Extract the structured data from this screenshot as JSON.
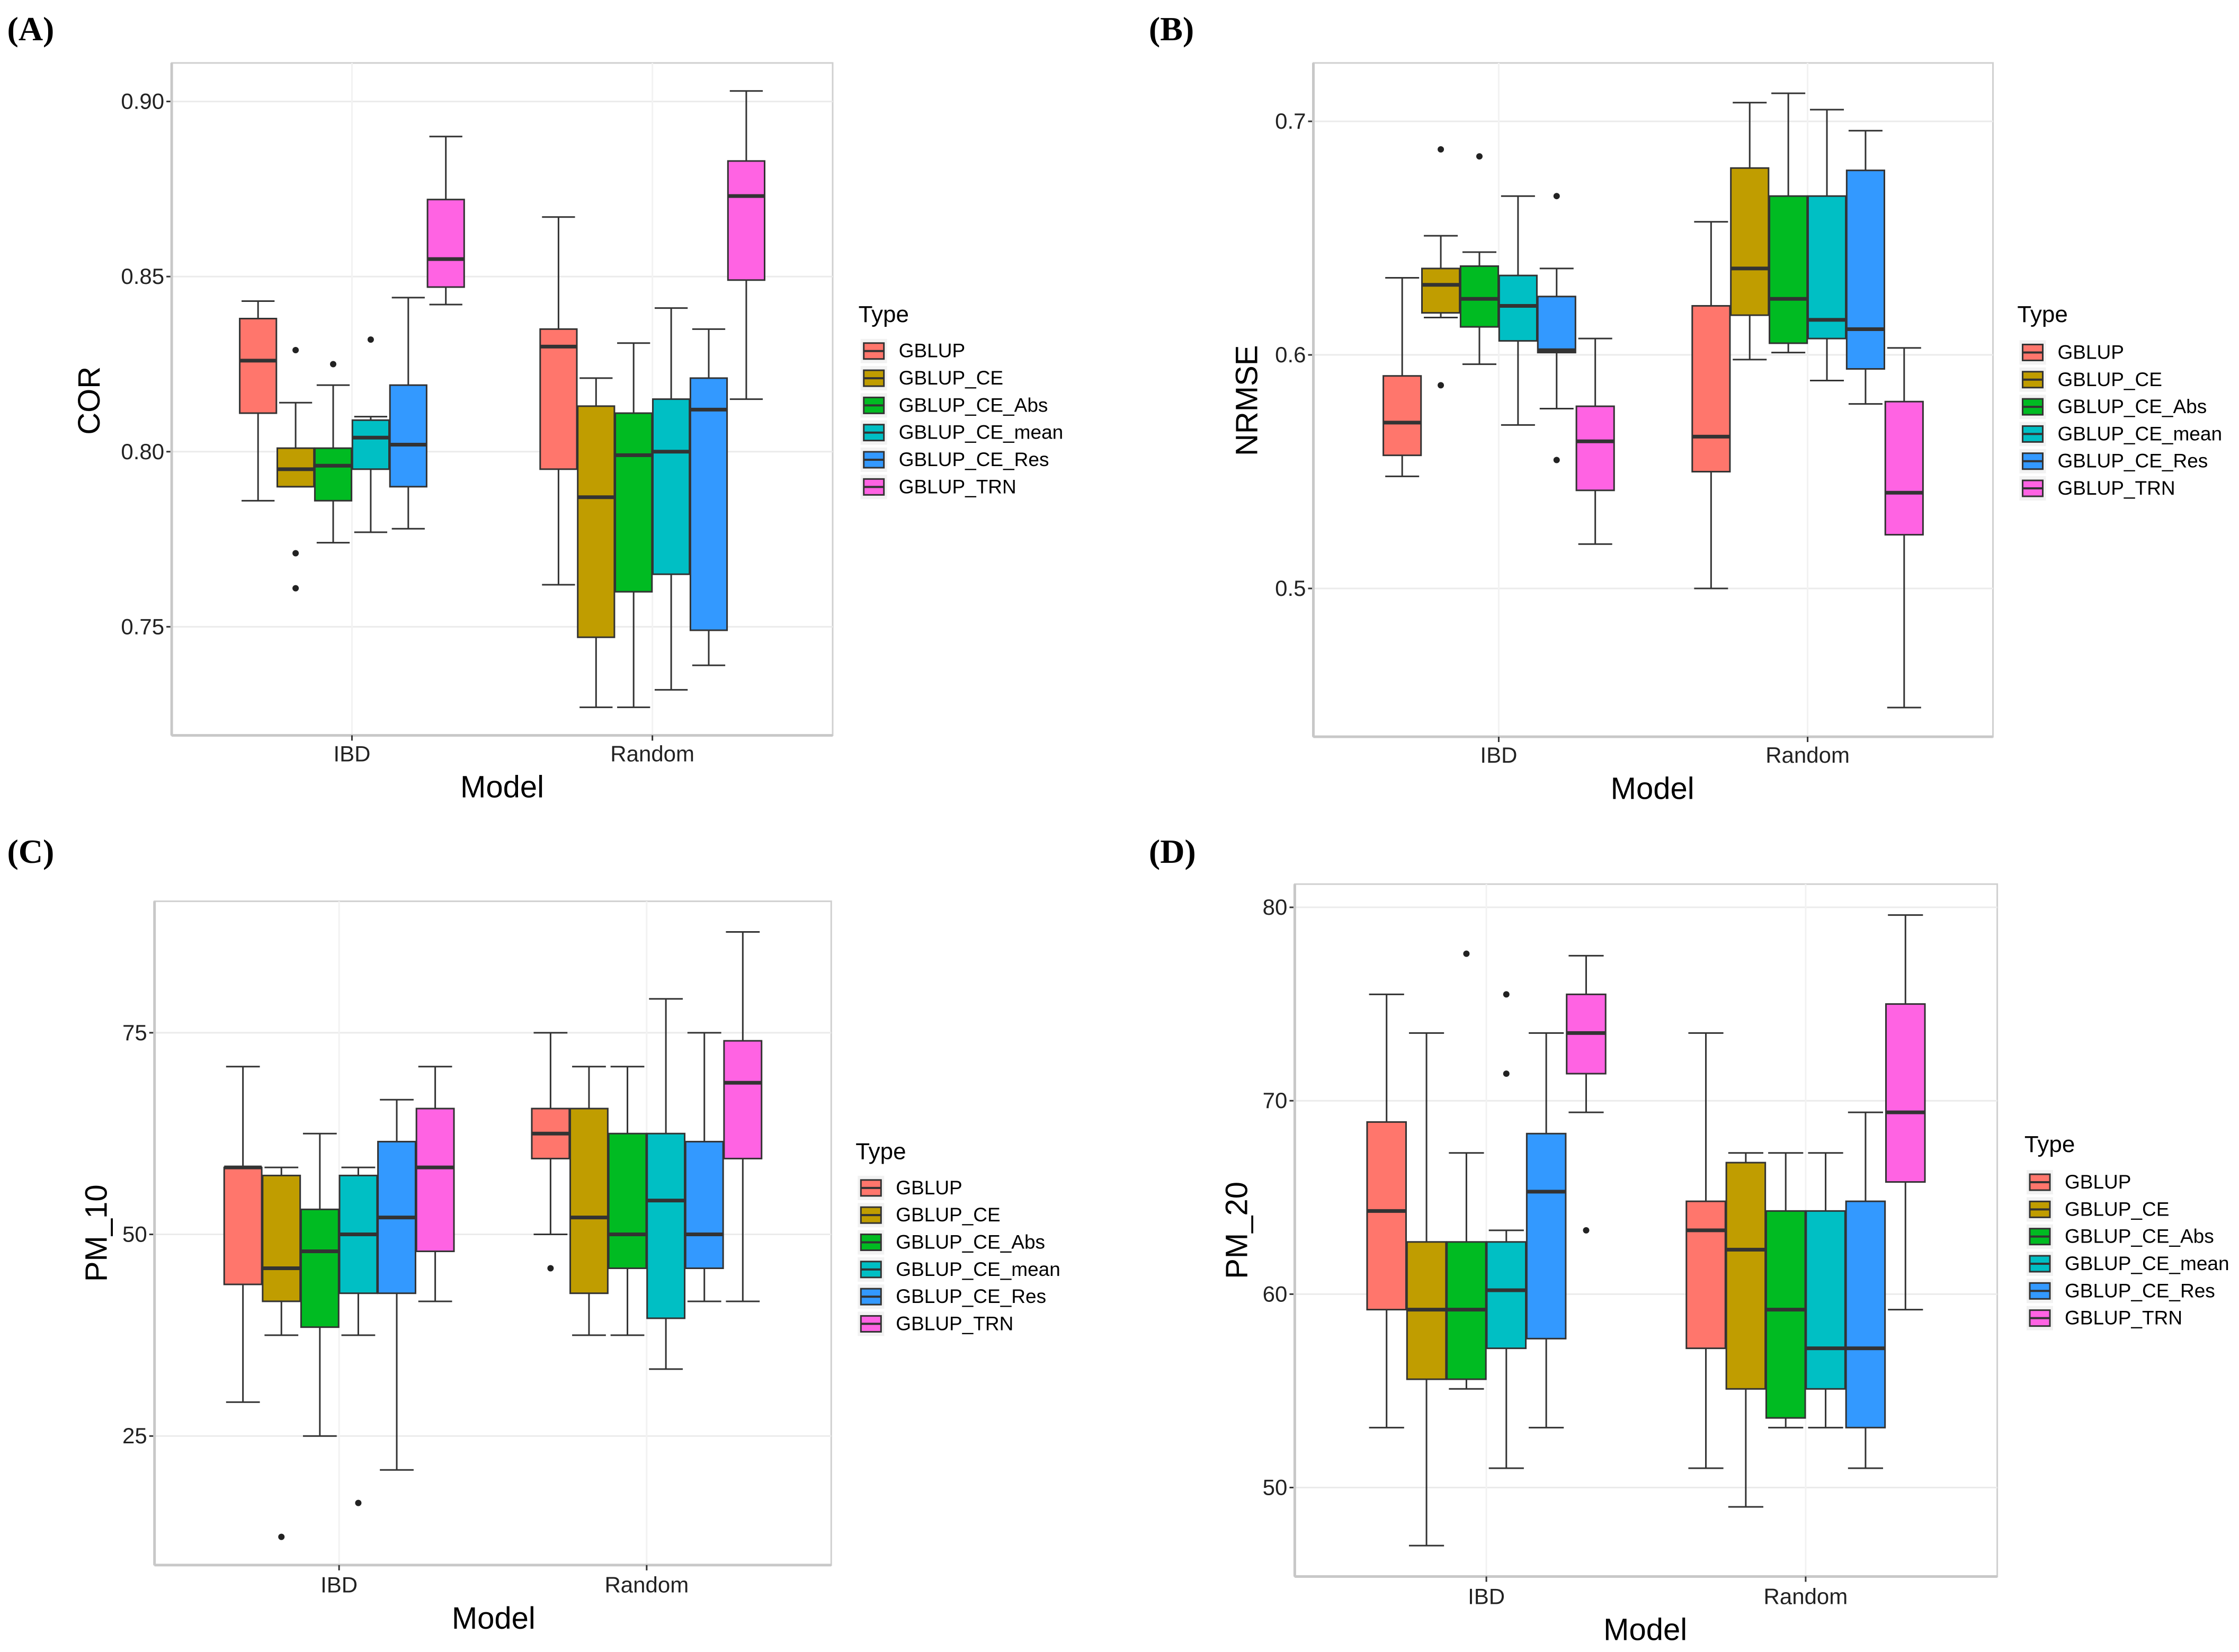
{
  "types": [
    "GBLUP",
    "GBLUP_CE",
    "GBLUP_CE_Abs",
    "GBLUP_CE_mean",
    "GBLUP_CE_Res",
    "GBLUP_TRN"
  ],
  "colors": [
    "#FF766C",
    "#C09D00",
    "#00BB22",
    "#00BFC4",
    "#3399FF",
    "#FF63E3"
  ],
  "chart_data": [
    {
      "panel_label": "(A)",
      "type": "boxplot",
      "xlabel": "Model",
      "ylabel": "COR",
      "legend_title": "Type",
      "legend_position": "right",
      "categories": [
        "IBD",
        "Random"
      ],
      "ylim": [
        0.719,
        0.911
      ],
      "yticks": [
        0.75,
        0.8,
        0.85,
        0.9
      ],
      "ytick_labels": [
        "0.75",
        "0.80",
        "0.85",
        "0.90"
      ],
      "series": [
        {
          "name": "GBLUP",
          "IBD": {
            "stats": [
              0.786,
              0.811,
              0.826,
              0.838,
              0.843
            ],
            "outliers": []
          },
          "Random": {
            "stats": [
              0.762,
              0.795,
              0.83,
              0.835,
              0.867
            ],
            "outliers": []
          }
        },
        {
          "name": "GBLUP_CE",
          "IBD": {
            "stats": [
              0.79,
              0.79,
              0.795,
              0.801,
              0.814
            ],
            "outliers": [
              0.829,
              0.771,
              0.761
            ]
          },
          "Random": {
            "stats": [
              0.727,
              0.747,
              0.787,
              0.813,
              0.821
            ],
            "outliers": []
          }
        },
        {
          "name": "GBLUP_CE_Abs",
          "IBD": {
            "stats": [
              0.774,
              0.786,
              0.796,
              0.801,
              0.819
            ],
            "outliers": [
              0.825
            ]
          },
          "Random": {
            "stats": [
              0.727,
              0.76,
              0.799,
              0.811,
              0.831
            ],
            "outliers": []
          }
        },
        {
          "name": "GBLUP_CE_mean",
          "IBD": {
            "stats": [
              0.777,
              0.795,
              0.804,
              0.809,
              0.81
            ],
            "outliers": [
              0.832
            ]
          },
          "Random": {
            "stats": [
              0.732,
              0.765,
              0.8,
              0.815,
              0.841
            ],
            "outliers": []
          }
        },
        {
          "name": "GBLUP_CE_Res",
          "IBD": {
            "stats": [
              0.778,
              0.79,
              0.802,
              0.819,
              0.844
            ],
            "outliers": []
          },
          "Random": {
            "stats": [
              0.739,
              0.749,
              0.812,
              0.821,
              0.835
            ],
            "outliers": []
          }
        },
        {
          "name": "GBLUP_TRN",
          "IBD": {
            "stats": [
              0.842,
              0.847,
              0.855,
              0.872,
              0.89
            ],
            "outliers": []
          },
          "Random": {
            "stats": [
              0.815,
              0.849,
              0.873,
              0.883,
              0.903
            ],
            "outliers": []
          }
        }
      ]
    },
    {
      "panel_label": "(B)",
      "type": "boxplot",
      "xlabel": "Model",
      "ylabel": "NRMSE",
      "legend_title": "Type",
      "legend_position": "right",
      "categories": [
        "IBD",
        "Random"
      ],
      "ylim": [
        0.4365,
        0.725
      ],
      "yticks": [
        0.5,
        0.6,
        0.7
      ],
      "ytick_labels": [
        "0.5",
        "0.6",
        "0.7"
      ],
      "series": [
        {
          "name": "GBLUP",
          "IBD": {
            "stats": [
              0.548,
              0.557,
              0.571,
              0.591,
              0.633
            ],
            "outliers": []
          },
          "Random": {
            "stats": [
              0.5,
              0.55,
              0.565,
              0.621,
              0.657
            ],
            "outliers": []
          }
        },
        {
          "name": "GBLUP_CE",
          "IBD": {
            "stats": [
              0.616,
              0.618,
              0.63,
              0.637,
              0.651
            ],
            "outliers": [
              0.688,
              0.587
            ]
          },
          "Random": {
            "stats": [
              0.598,
              0.617,
              0.637,
              0.68,
              0.708
            ],
            "outliers": []
          }
        },
        {
          "name": "GBLUP_CE_Abs",
          "IBD": {
            "stats": [
              0.596,
              0.612,
              0.624,
              0.638,
              0.644
            ],
            "outliers": [
              0.685
            ]
          },
          "Random": {
            "stats": [
              0.601,
              0.605,
              0.624,
              0.668,
              0.712
            ],
            "outliers": []
          }
        },
        {
          "name": "GBLUP_CE_mean",
          "IBD": {
            "stats": [
              0.57,
              0.606,
              0.621,
              0.634,
              0.668
            ],
            "outliers": []
          },
          "Random": {
            "stats": [
              0.589,
              0.607,
              0.615,
              0.668,
              0.705
            ],
            "outliers": []
          }
        },
        {
          "name": "GBLUP_CE_Res",
          "IBD": {
            "stats": [
              0.577,
              0.601,
              0.602,
              0.625,
              0.637
            ],
            "outliers": [
              0.668,
              0.555
            ]
          },
          "Random": {
            "stats": [
              0.579,
              0.594,
              0.611,
              0.679,
              0.696
            ],
            "outliers": []
          }
        },
        {
          "name": "GBLUP_TRN",
          "IBD": {
            "stats": [
              0.519,
              0.542,
              0.563,
              0.578,
              0.607
            ],
            "outliers": []
          },
          "Random": {
            "stats": [
              0.449,
              0.523,
              0.541,
              0.58,
              0.603
            ],
            "outliers": []
          }
        }
      ]
    },
    {
      "panel_label": "(C)",
      "type": "boxplot",
      "xlabel": "Model",
      "ylabel": "PM_10",
      "legend_title": "Type",
      "legend_position": "right",
      "categories": [
        "IBD",
        "Random"
      ],
      "ylim": [
        9.0,
        91.3
      ],
      "yticks": [
        25,
        50,
        75
      ],
      "ytick_labels": [
        "25",
        "50",
        "75"
      ],
      "series": [
        {
          "name": "GBLUP",
          "IBD": {
            "stats": [
              29.2,
              43.8,
              58.3,
              58.3,
              70.8
            ],
            "outliers": []
          },
          "Random": {
            "stats": [
              50.0,
              59.4,
              62.5,
              65.6,
              75.0
            ],
            "outliers": [
              45.8
            ]
          }
        },
        {
          "name": "GBLUP_CE",
          "IBD": {
            "stats": [
              37.5,
              41.7,
              45.8,
              57.3,
              58.3
            ],
            "outliers": [
              12.5
            ]
          },
          "Random": {
            "stats": [
              37.5,
              42.7,
              52.1,
              65.6,
              70.8
            ],
            "outliers": []
          }
        },
        {
          "name": "GBLUP_CE_Abs",
          "IBD": {
            "stats": [
              25.0,
              38.5,
              47.9,
              53.1,
              62.5
            ],
            "outliers": []
          },
          "Random": {
            "stats": [
              37.5,
              45.8,
              50.0,
              62.5,
              70.8
            ],
            "outliers": []
          }
        },
        {
          "name": "GBLUP_CE_mean",
          "IBD": {
            "stats": [
              37.5,
              42.7,
              50.0,
              57.3,
              58.3
            ],
            "outliers": [
              16.7
            ]
          },
          "Random": {
            "stats": [
              33.3,
              39.6,
              54.2,
              62.5,
              79.2
            ],
            "outliers": []
          }
        },
        {
          "name": "GBLUP_CE_Res",
          "IBD": {
            "stats": [
              20.8,
              42.7,
              52.1,
              61.5,
              66.7
            ],
            "outliers": []
          },
          "Random": {
            "stats": [
              41.7,
              45.8,
              50.0,
              61.5,
              75.0
            ],
            "outliers": []
          }
        },
        {
          "name": "GBLUP_TRN",
          "IBD": {
            "stats": [
              41.7,
              47.9,
              58.3,
              65.6,
              70.8
            ],
            "outliers": []
          },
          "Random": {
            "stats": [
              41.7,
              59.4,
              68.8,
              74.0,
              87.5
            ],
            "outliers": []
          }
        }
      ]
    },
    {
      "panel_label": "(D)",
      "type": "boxplot",
      "xlabel": "Model",
      "ylabel": "PM_20",
      "legend_title": "Type",
      "legend_position": "right",
      "categories": [
        "IBD",
        "Random"
      ],
      "ylim": [
        45.4,
        81.2
      ],
      "yticks": [
        50,
        60,
        70,
        80
      ],
      "ytick_labels": [
        "50",
        "60",
        "70",
        "80"
      ],
      "series": [
        {
          "name": "GBLUP",
          "IBD": {
            "stats": [
              53.1,
              59.2,
              64.3,
              68.9,
              75.5
            ],
            "outliers": []
          },
          "Random": {
            "stats": [
              51.0,
              57.2,
              63.3,
              64.8,
              73.5
            ],
            "outliers": []
          }
        },
        {
          "name": "GBLUP_CE",
          "IBD": {
            "stats": [
              47.0,
              55.6,
              59.2,
              62.7,
              73.5
            ],
            "outliers": []
          },
          "Random": {
            "stats": [
              49.0,
              55.1,
              62.3,
              66.8,
              67.3
            ],
            "outliers": []
          }
        },
        {
          "name": "GBLUP_CE_Abs",
          "IBD": {
            "stats": [
              55.1,
              55.6,
              59.2,
              62.7,
              67.3
            ],
            "outliers": [
              77.6
            ]
          },
          "Random": {
            "stats": [
              53.1,
              53.6,
              59.2,
              64.3,
              67.3
            ],
            "outliers": []
          }
        },
        {
          "name": "GBLUP_CE_mean",
          "IBD": {
            "stats": [
              51.0,
              57.2,
              60.2,
              62.7,
              63.3
            ],
            "outliers": [
              75.5,
              71.4
            ]
          },
          "Random": {
            "stats": [
              53.1,
              55.1,
              57.2,
              64.3,
              67.3
            ],
            "outliers": []
          }
        },
        {
          "name": "GBLUP_CE_Res",
          "IBD": {
            "stats": [
              53.1,
              57.7,
              65.3,
              68.3,
              73.5
            ],
            "outliers": []
          },
          "Random": {
            "stats": [
              51.0,
              53.1,
              57.2,
              64.8,
              69.4
            ],
            "outliers": []
          }
        },
        {
          "name": "GBLUP_TRN",
          "IBD": {
            "stats": [
              69.4,
              71.4,
              73.5,
              75.5,
              77.5
            ],
            "outliers": [
              63.3
            ]
          },
          "Random": {
            "stats": [
              59.2,
              65.8,
              69.4,
              75.0,
              79.6
            ],
            "outliers": []
          }
        }
      ]
    }
  ]
}
